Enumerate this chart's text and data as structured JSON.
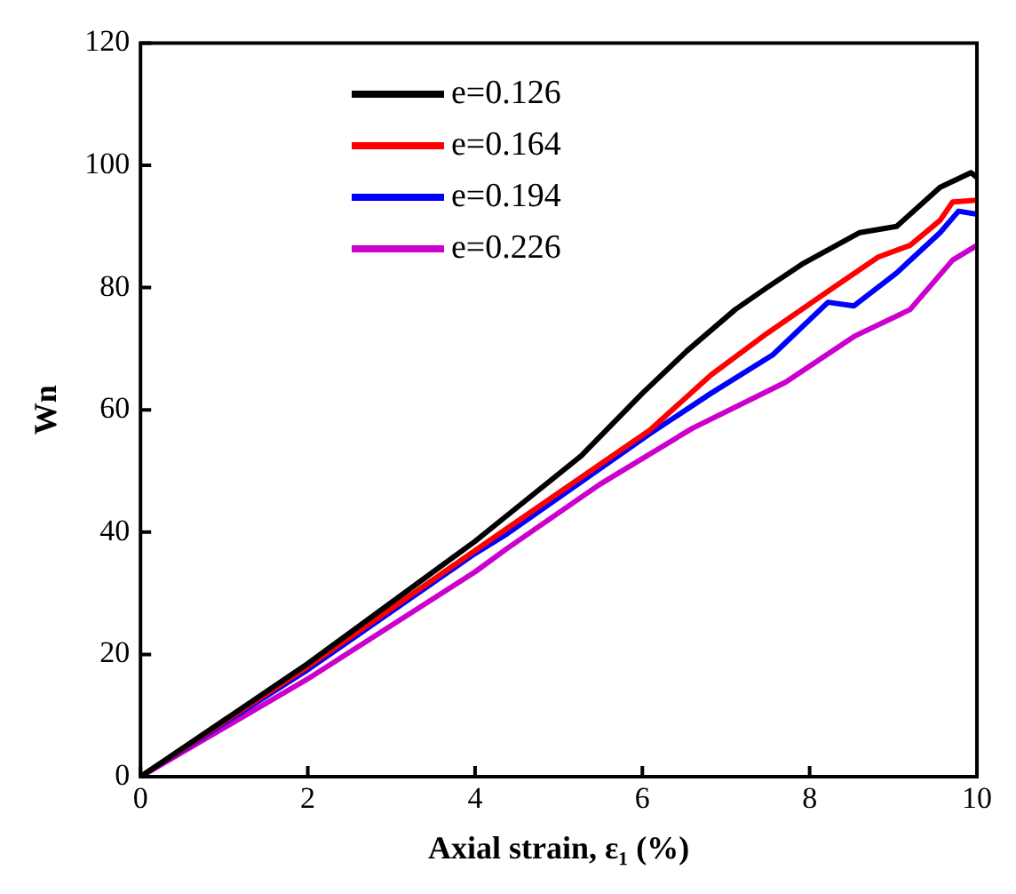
{
  "chart_data": {
    "type": "line",
    "xlabel": "Axial strain, ε₁ (%)",
    "ylabel": "Wn",
    "xlim": [
      0,
      10
    ],
    "ylim": [
      0,
      120
    ],
    "xticks": [
      0,
      2,
      4,
      6,
      8,
      10
    ],
    "yticks": [
      0,
      20,
      40,
      60,
      80,
      100,
      120
    ],
    "grid": false,
    "legend": "top left",
    "marker": "none",
    "line_style": "solid",
    "series": [
      {
        "name": "e=0.126",
        "color": "#000000",
        "x": [
          0,
          2,
          4,
          4.38,
          5.27,
          6,
          6.53,
          7.11,
          7.49,
          7.93,
          8.6,
          9.04,
          9.56,
          9.93,
          10
        ],
        "values": [
          0,
          18.5,
          38.5,
          42.7,
          52.5,
          62.7,
          69.6,
          76.4,
          80,
          84,
          89,
          90,
          96.4,
          98.8,
          98
        ]
      },
      {
        "name": "e=0.164",
        "color": "#ff0000",
        "x": [
          0,
          2,
          4,
          4.38,
          6.09,
          6.82,
          7.49,
          8.22,
          8.82,
          9.2,
          9.56,
          9.71,
          10
        ],
        "values": [
          0,
          18,
          37,
          40.6,
          56.7,
          65.7,
          72.5,
          79.4,
          85,
          86.9,
          91,
          94,
          94.3
        ]
      },
      {
        "name": "e=0.194",
        "color": "#0000ff",
        "x": [
          0,
          2,
          4,
          4.38,
          6.09,
          6.82,
          7.56,
          8.22,
          8.53,
          9.04,
          9.56,
          9.78,
          10
        ],
        "values": [
          0,
          17.5,
          36.5,
          39.7,
          56.1,
          62.7,
          69,
          77.6,
          77,
          82.4,
          89,
          92.5,
          92
        ]
      },
      {
        "name": "e=0.226",
        "color": "#cc00cc",
        "x": [
          0,
          2,
          4,
          4.38,
          5.49,
          6.6,
          7.71,
          8.53,
          9.2,
          9.71,
          10
        ],
        "values": [
          0,
          16,
          33.5,
          37.3,
          47.8,
          57,
          64.5,
          72,
          76.4,
          84.5,
          86.9
        ]
      }
    ]
  }
}
